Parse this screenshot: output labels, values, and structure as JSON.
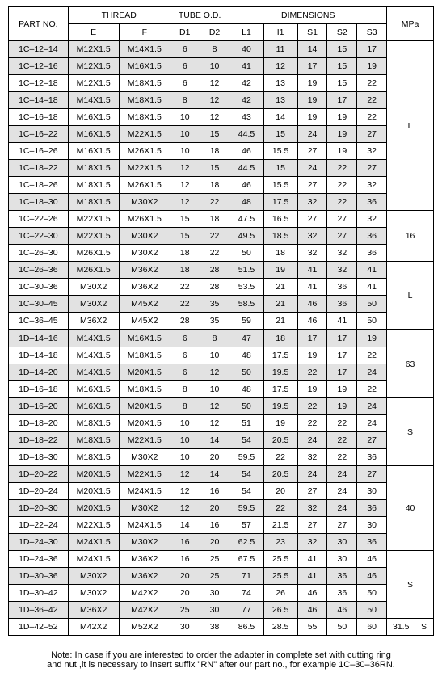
{
  "headers": {
    "part_no": "PART  NO.",
    "thread": "THREAD",
    "thread_e": "E",
    "thread_f": "F",
    "tube": "TUBE O.D.",
    "d1": "D1",
    "d2": "D2",
    "dims": "DIMENSIONS",
    "l1": "L1",
    "i1": "I1",
    "s1": "S1",
    "s2": "S2",
    "s3": "S3",
    "mpa": "MPa"
  },
  "mpa": {
    "r0": "L",
    "r1": "16",
    "r2": "L",
    "r3": "63",
    "r4": "S",
    "r5": "40",
    "r6": "S",
    "r7": "31.5",
    "r8": "S"
  },
  "rows": [
    {
      "p": "1C–12–14",
      "e": "M12X1.5",
      "f": "M14X1.5",
      "d1": "6",
      "d2": "8",
      "l1": "40",
      "i1": "11",
      "s1": "14",
      "s2": "15",
      "s3": "17",
      "s": 1
    },
    {
      "p": "1C–12–16",
      "e": "M12X1.5",
      "f": "M16X1.5",
      "d1": "6",
      "d2": "10",
      "l1": "41",
      "i1": "12",
      "s1": "17",
      "s2": "15",
      "s3": "19",
      "s": 1
    },
    {
      "p": "1C–12–18",
      "e": "M12X1.5",
      "f": "M18X1.5",
      "d1": "6",
      "d2": "12",
      "l1": "42",
      "i1": "13",
      "s1": "19",
      "s2": "15",
      "s3": "22",
      "s": 0
    },
    {
      "p": "1C–14–18",
      "e": "M14X1.5",
      "f": "M18X1.5",
      "d1": "8",
      "d2": "12",
      "l1": "42",
      "i1": "13",
      "s1": "19",
      "s2": "17",
      "s3": "22",
      "s": 1
    },
    {
      "p": "1C–16–18",
      "e": "M16X1.5",
      "f": "M18X1.5",
      "d1": "10",
      "d2": "12",
      "l1": "43",
      "i1": "14",
      "s1": "19",
      "s2": "19",
      "s3": "22",
      "s": 0
    },
    {
      "p": "1C–16–22",
      "e": "M16X1.5",
      "f": "M22X1.5",
      "d1": "10",
      "d2": "15",
      "l1": "44.5",
      "i1": "15",
      "s1": "24",
      "s2": "19",
      "s3": "27",
      "s": 1
    },
    {
      "p": "1C–16–26",
      "e": "M16X1.5",
      "f": "M26X1.5",
      "d1": "10",
      "d2": "18",
      "l1": "46",
      "i1": "15.5",
      "s1": "27",
      "s2": "19",
      "s3": "32",
      "s": 0
    },
    {
      "p": "1C–18–22",
      "e": "M18X1.5",
      "f": "M22X1.5",
      "d1": "12",
      "d2": "15",
      "l1": "44.5",
      "i1": "15",
      "s1": "24",
      "s2": "22",
      "s3": "27",
      "s": 1
    },
    {
      "p": "1C–18–26",
      "e": "M18X1.5",
      "f": "M26X1.5",
      "d1": "12",
      "d2": "18",
      "l1": "46",
      "i1": "15.5",
      "s1": "27",
      "s2": "22",
      "s3": "32",
      "s": 0
    },
    {
      "p": "1C–18–30",
      "e": "M18X1.5",
      "f": "M30X2",
      "d1": "12",
      "d2": "22",
      "l1": "48",
      "i1": "17.5",
      "s1": "32",
      "s2": "22",
      "s3": "36",
      "s": 1
    },
    {
      "p": "1C–22–26",
      "e": "M22X1.5",
      "f": "M26X1.5",
      "d1": "15",
      "d2": "18",
      "l1": "47.5",
      "i1": "16.5",
      "s1": "27",
      "s2": "27",
      "s3": "32",
      "s": 0
    },
    {
      "p": "1C–22–30",
      "e": "M22X1.5",
      "f": "M30X2",
      "d1": "15",
      "d2": "22",
      "l1": "49.5",
      "i1": "18.5",
      "s1": "32",
      "s2": "27",
      "s3": "36",
      "s": 1
    },
    {
      "p": "1C–26–30",
      "e": "M26X1.5",
      "f": "M30X2",
      "d1": "18",
      "d2": "22",
      "l1": "50",
      "i1": "18",
      "s1": "32",
      "s2": "32",
      "s3": "36",
      "s": 0
    },
    {
      "p": "1C–26–36",
      "e": "M26X1.5",
      "f": "M36X2",
      "d1": "18",
      "d2": "28",
      "l1": "51.5",
      "i1": "19",
      "s1": "41",
      "s2": "32",
      "s3": "41",
      "s": 1
    },
    {
      "p": "1C–30–36",
      "e": "M30X2",
      "f": "M36X2",
      "d1": "22",
      "d2": "28",
      "l1": "53.5",
      "i1": "21",
      "s1": "41",
      "s2": "36",
      "s3": "41",
      "s": 0
    },
    {
      "p": "1C–30–45",
      "e": "M30X2",
      "f": "M45X2",
      "d1": "22",
      "d2": "35",
      "l1": "58.5",
      "i1": "21",
      "s1": "46",
      "s2": "36",
      "s3": "50",
      "s": 1
    },
    {
      "p": "1C–36–45",
      "e": "M36X2",
      "f": "M45X2",
      "d1": "28",
      "d2": "35",
      "l1": "59",
      "i1": "21",
      "s1": "46",
      "s2": "41",
      "s3": "50",
      "s": 0
    },
    {
      "p": "1D–14–16",
      "e": "M14X1.5",
      "f": "M16X1.5",
      "d1": "6",
      "d2": "8",
      "l1": "47",
      "i1": "18",
      "s1": "17",
      "s2": "17",
      "s3": "19",
      "s": 1
    },
    {
      "p": "1D–14–18",
      "e": "M14X1.5",
      "f": "M18X1.5",
      "d1": "6",
      "d2": "10",
      "l1": "48",
      "i1": "17.5",
      "s1": "19",
      "s2": "17",
      "s3": "22",
      "s": 0
    },
    {
      "p": "1D–14–20",
      "e": "M14X1.5",
      "f": "M20X1.5",
      "d1": "6",
      "d2": "12",
      "l1": "50",
      "i1": "19.5",
      "s1": "22",
      "s2": "17",
      "s3": "24",
      "s": 1
    },
    {
      "p": "1D–16–18",
      "e": "M16X1.5",
      "f": "M18X1.5",
      "d1": "8",
      "d2": "10",
      "l1": "48",
      "i1": "17.5",
      "s1": "19",
      "s2": "19",
      "s3": "22",
      "s": 0
    },
    {
      "p": "1D–16–20",
      "e": "M16X1.5",
      "f": "M20X1.5",
      "d1": "8",
      "d2": "12",
      "l1": "50",
      "i1": "19.5",
      "s1": "22",
      "s2": "19",
      "s3": "24",
      "s": 1
    },
    {
      "p": "1D–18–20",
      "e": "M18X1.5",
      "f": "M20X1.5",
      "d1": "10",
      "d2": "12",
      "l1": "51",
      "i1": "19",
      "s1": "22",
      "s2": "22",
      "s3": "24",
      "s": 0
    },
    {
      "p": "1D–18–22",
      "e": "M18X1.5",
      "f": "M22X1.5",
      "d1": "10",
      "d2": "14",
      "l1": "54",
      "i1": "20.5",
      "s1": "24",
      "s2": "22",
      "s3": "27",
      "s": 1
    },
    {
      "p": "1D–18–30",
      "e": "M18X1.5",
      "f": "M30X2",
      "d1": "10",
      "d2": "20",
      "l1": "59.5",
      "i1": "22",
      "s1": "32",
      "s2": "22",
      "s3": "36",
      "s": 0
    },
    {
      "p": "1D–20–22",
      "e": "M20X1.5",
      "f": "M22X1.5",
      "d1": "12",
      "d2": "14",
      "l1": "54",
      "i1": "20.5",
      "s1": "24",
      "s2": "24",
      "s3": "27",
      "s": 1
    },
    {
      "p": "1D–20–24",
      "e": "M20X1.5",
      "f": "M24X1.5",
      "d1": "12",
      "d2": "16",
      "l1": "54",
      "i1": "20",
      "s1": "27",
      "s2": "24",
      "s3": "30",
      "s": 0
    },
    {
      "p": "1D–20–30",
      "e": "M20X1.5",
      "f": "M30X2",
      "d1": "12",
      "d2": "20",
      "l1": "59.5",
      "i1": "22",
      "s1": "32",
      "s2": "24",
      "s3": "36",
      "s": 1
    },
    {
      "p": "1D–22–24",
      "e": "M22X1.5",
      "f": "M24X1.5",
      "d1": "14",
      "d2": "16",
      "l1": "57",
      "i1": "21.5",
      "s1": "27",
      "s2": "27",
      "s3": "30",
      "s": 0
    },
    {
      "p": "1D–24–30",
      "e": "M24X1.5",
      "f": "M30X2",
      "d1": "16",
      "d2": "20",
      "l1": "62.5",
      "i1": "23",
      "s1": "32",
      "s2": "30",
      "s3": "36",
      "s": 1
    },
    {
      "p": "1D–24–36",
      "e": "M24X1.5",
      "f": "M36X2",
      "d1": "16",
      "d2": "25",
      "l1": "67.5",
      "i1": "25.5",
      "s1": "41",
      "s2": "30",
      "s3": "46",
      "s": 0
    },
    {
      "p": "1D–30–36",
      "e": "M30X2",
      "f": "M36X2",
      "d1": "20",
      "d2": "25",
      "l1": "71",
      "i1": "25.5",
      "s1": "41",
      "s2": "36",
      "s3": "46",
      "s": 1
    },
    {
      "p": "1D–30–42",
      "e": "M30X2",
      "f": "M42X2",
      "d1": "20",
      "d2": "30",
      "l1": "74",
      "i1": "26",
      "s1": "46",
      "s2": "36",
      "s3": "50",
      "s": 0
    },
    {
      "p": "1D–36–42",
      "e": "M36X2",
      "f": "M42X2",
      "d1": "25",
      "d2": "30",
      "l1": "77",
      "i1": "26.5",
      "s1": "46",
      "s2": "46",
      "s3": "50",
      "s": 1
    },
    {
      "p": "1D–42–52",
      "e": "M42X2",
      "f": "M52X2",
      "d1": "30",
      "d2": "38",
      "l1": "86.5",
      "i1": "28.5",
      "s1": "55",
      "s2": "50",
      "s3": "60",
      "s": 0
    }
  ],
  "note": "Note:  In case if you are interested to order the adapter in complete set with cutting ring\nand nut ,it is necessary to insert suffix \"RN\" after our part no.,   for example 1C–30–36RN."
}
